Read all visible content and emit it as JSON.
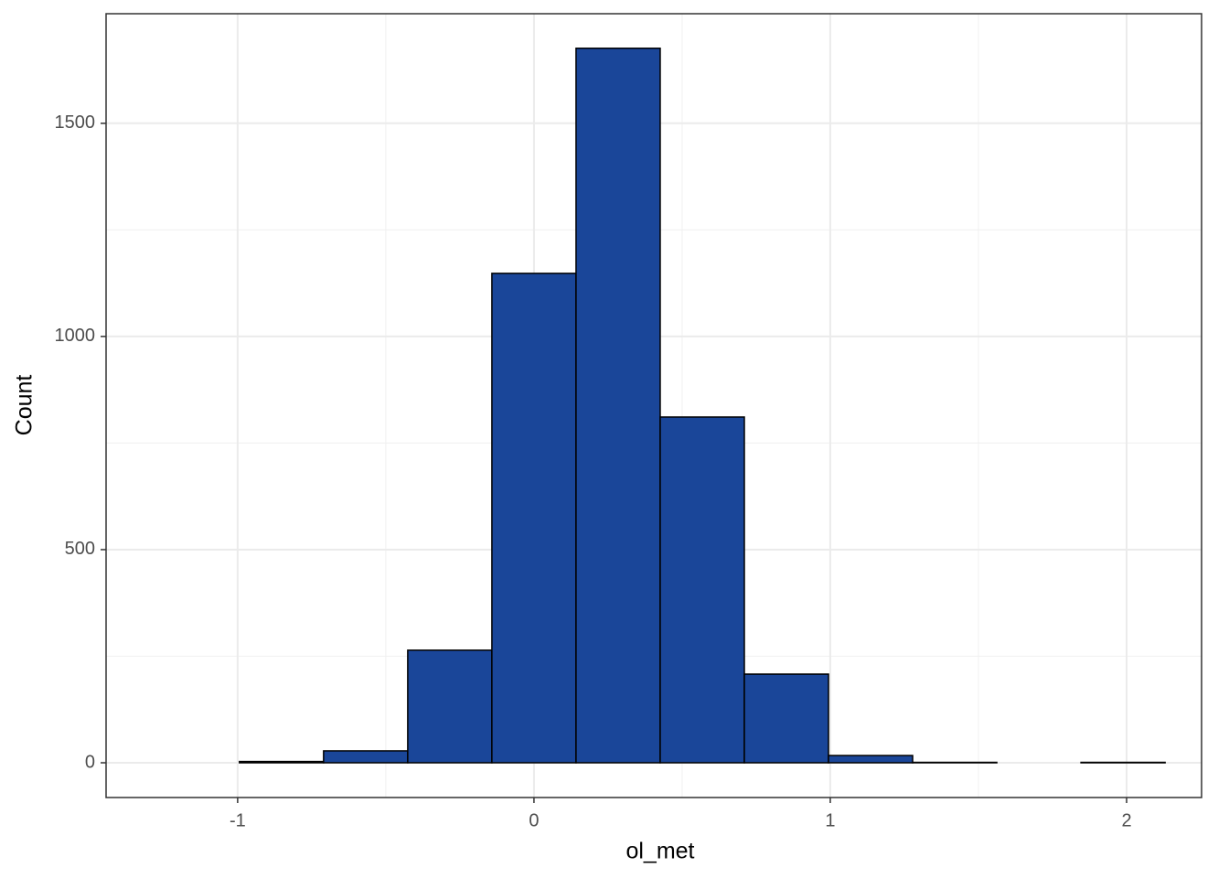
{
  "chart_data": {
    "type": "histogram",
    "x_label": "ol_met",
    "y_label": "Count",
    "bins": [
      -1.278,
      -0.994,
      -0.71,
      -0.426,
      -0.142,
      0.142,
      0.426,
      0.71,
      0.994,
      1.278,
      1.562,
      1.846,
      2.13
    ],
    "values": [
      0,
      3,
      28,
      264,
      1148,
      1676,
      811,
      208,
      17,
      1,
      0,
      1
    ],
    "color": "#1a4699",
    "xlim": [
      -1.444,
      2.253
    ],
    "xticks": [
      -1,
      0,
      1,
      2
    ],
    "minor_xticks": [
      -0.5,
      0.5,
      1.5
    ],
    "ylim": [
      -81.5,
      1757
    ],
    "yticks": [
      0,
      500,
      1000,
      1500
    ],
    "minor_yticks": [
      250,
      750,
      1250
    ],
    "grid": true
  }
}
